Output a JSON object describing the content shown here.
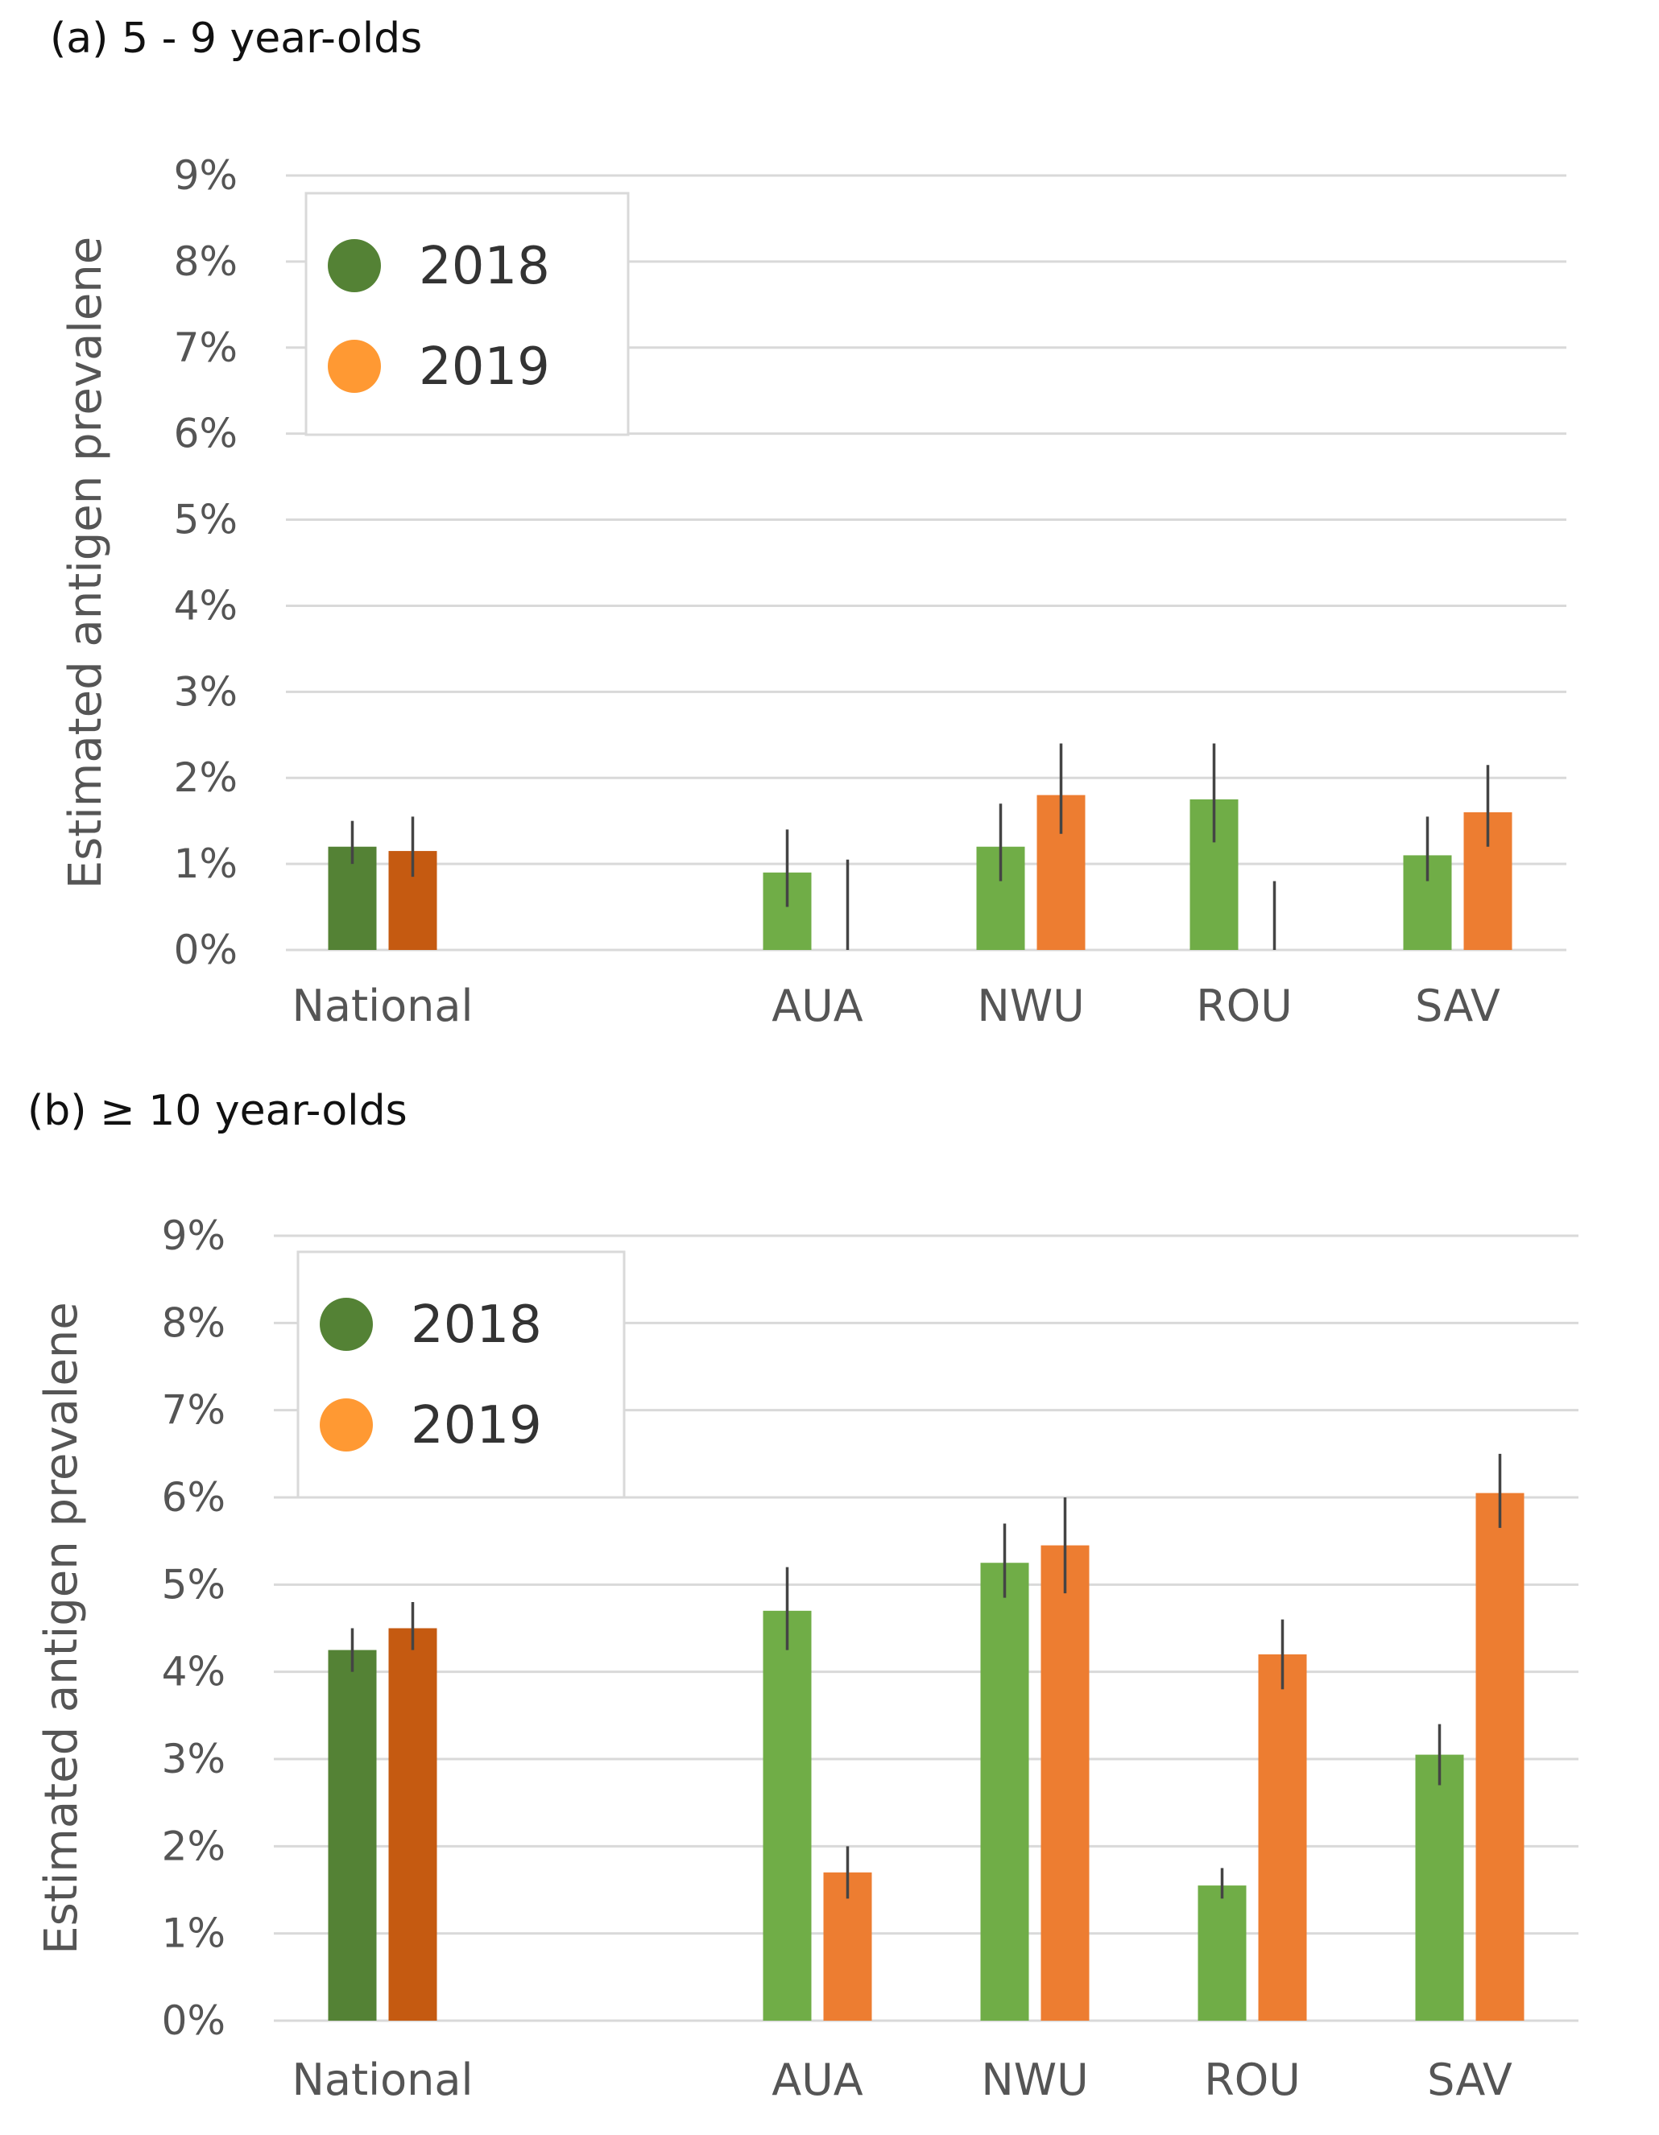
{
  "chart_data": [
    {
      "type": "bar",
      "title": "(a) 5 - 9 year-olds",
      "xlabel": "",
      "ylabel": "Estimated antigen prevalene",
      "categories": [
        "National",
        "AUA",
        "NWU",
        "ROU",
        "SAV"
      ],
      "ylim": [
        0,
        9
      ],
      "yticks": [
        "0%",
        "1%",
        "2%",
        "3%",
        "4%",
        "5%",
        "6%",
        "7%",
        "8%",
        "9%"
      ],
      "grid": true,
      "legend_position": "top-left",
      "series": [
        {
          "name": "2018",
          "values": [
            1.2,
            0.9,
            1.2,
            1.75,
            1.1
          ],
          "err_low": [
            1.0,
            0.5,
            0.8,
            1.25,
            0.8
          ],
          "err_high": [
            1.5,
            1.4,
            1.7,
            2.4,
            1.55
          ]
        },
        {
          "name": "2019",
          "values": [
            1.15,
            0.0,
            1.8,
            0.0,
            1.6
          ],
          "err_low": [
            0.85,
            0.0,
            1.35,
            0.0,
            1.2
          ],
          "err_high": [
            1.55,
            1.05,
            2.4,
            0.8,
            2.15
          ]
        }
      ]
    },
    {
      "type": "bar",
      "title": "(b) ≥ 10 year-olds",
      "xlabel": "",
      "ylabel": "Estimated antigen prevalene",
      "categories": [
        "National",
        "AUA",
        "NWU",
        "ROU",
        "SAV"
      ],
      "ylim": [
        0,
        9
      ],
      "yticks": [
        "0%",
        "1%",
        "2%",
        "3%",
        "4%",
        "5%",
        "6%",
        "7%",
        "8%",
        "9%"
      ],
      "grid": true,
      "legend_position": "top-left",
      "series": [
        {
          "name": "2018",
          "values": [
            4.25,
            4.7,
            5.25,
            1.55,
            3.05
          ],
          "err_low": [
            4.0,
            4.25,
            4.85,
            1.4,
            2.7
          ],
          "err_high": [
            4.5,
            5.2,
            5.7,
            1.75,
            3.4
          ]
        },
        {
          "name": "2019",
          "values": [
            4.5,
            1.7,
            5.45,
            4.2,
            6.05
          ],
          "err_low": [
            4.25,
            1.4,
            4.9,
            3.8,
            5.65
          ],
          "err_high": [
            4.8,
            2.0,
            6.0,
            4.6,
            6.5
          ]
        }
      ]
    }
  ],
  "colors": {
    "national_2018": "#548235",
    "national_2019": "#C55A11",
    "region_2018": "#70AD47",
    "region_2019": "#ED7D31",
    "legend_2018": "#548235",
    "legend_2019": "#FF9933",
    "grid": "#D9D9D9",
    "error_bar": "#444444"
  }
}
